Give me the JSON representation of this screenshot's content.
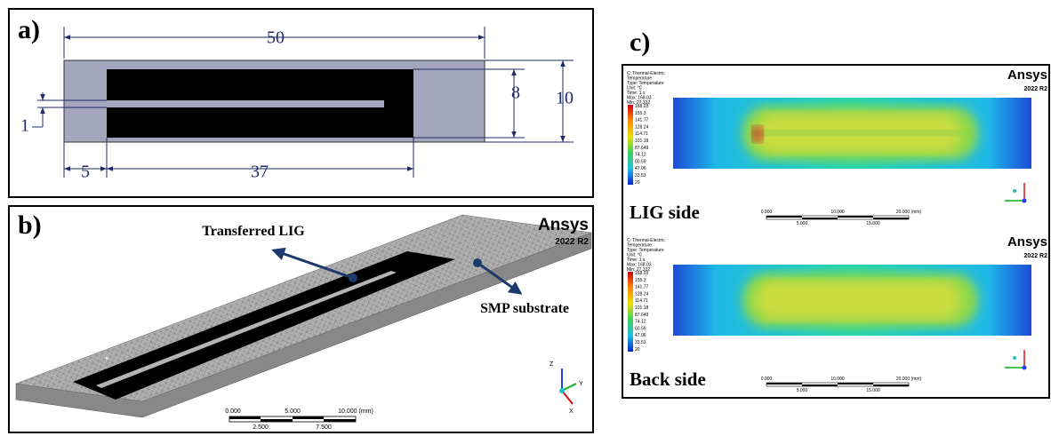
{
  "panel_a": {
    "label": "a)",
    "dimensions": {
      "length": "50",
      "width": "10",
      "lig_width": "8",
      "strip_width": "1",
      "margin": "5",
      "lig_length": "37"
    }
  },
  "panel_b": {
    "label": "b)",
    "brand": "Ansys",
    "version": "2022 R2",
    "callouts": [
      "Transferred LIG",
      "SMP substrate"
    ],
    "scale": {
      "top": [
        "0.000",
        "5.000",
        "10.000 (mm)"
      ],
      "bottom": [
        "2.500",
        "7.500"
      ]
    },
    "axes": [
      "Z",
      "Y",
      "X"
    ]
  },
  "panel_c": {
    "label": "c)",
    "views": [
      {
        "header": [
          "C: Thermal-Electric",
          "Temperature",
          "Type: Temperature",
          "Unit: °C",
          "Time: 1 s",
          "Max: 168.03",
          "Min: 27.332"
        ],
        "legend": [
          "168.03",
          "155.3",
          "141.77",
          "128.24",
          "114.71",
          "101.18",
          "87.649",
          "74.12",
          "60.59",
          "47.06",
          "33.53",
          "20"
        ],
        "brand": "Ansys",
        "version": "2022 R2",
        "side": "LIG side",
        "scale": {
          "top": [
            "0.000",
            "10.000",
            "20.000 (mm)"
          ],
          "bottom": [
            "5.000",
            "15.000"
          ]
        }
      },
      {
        "header": [
          "C: Thermal-Electric",
          "Temperature",
          "Type: Temperature",
          "Unit: °C",
          "Time: 1 s",
          "Max: 168.03",
          "Min: 27.332"
        ],
        "legend": [
          "168.03",
          "155.3",
          "141.77",
          "128.24",
          "114.71",
          "101.18",
          "87.649",
          "74.12",
          "60.59",
          "47.06",
          "33.53",
          "20"
        ],
        "brand": "Ansys",
        "version": "2022 R2",
        "side": "Back side",
        "scale": {
          "top": [
            "0.000",
            "10.000",
            "20.000 (mm)"
          ],
          "bottom": [
            "5.000",
            "15.000"
          ]
        }
      }
    ]
  }
}
